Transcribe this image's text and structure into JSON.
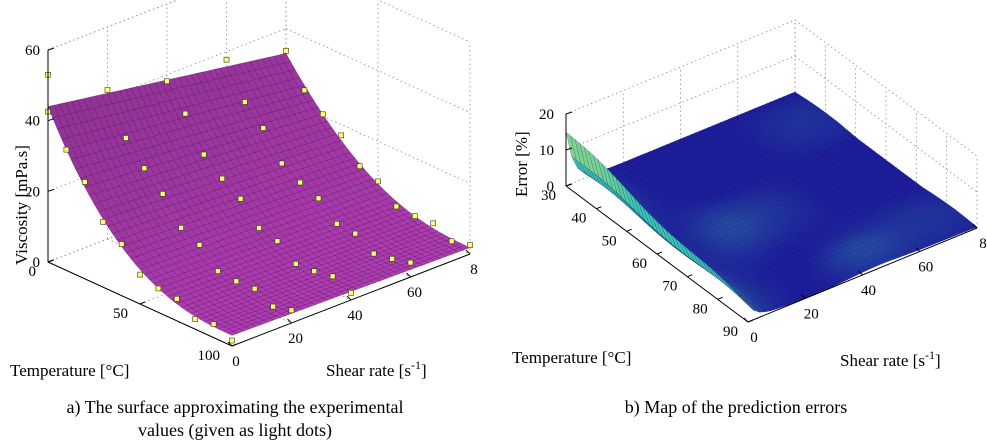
{
  "figure": {
    "caption_a_line1": "a) The surface approximating the experimental",
    "caption_a_line2": "values (given as light dots)",
    "caption_b": "b) Map of the prediction errors"
  },
  "chart_data": [
    {
      "type": "surface3d",
      "zlabel": "Viscosity [mPa.s]",
      "xlabel": "Shear rate [s⁻¹]",
      "ylabel": "Temperature [°C]",
      "xlabel_main": "Shear rate [s",
      "xlabel_sup": "-1",
      "xlabel_end": "]",
      "x_ticks": [
        "0",
        "20",
        "40",
        "60",
        "8"
      ],
      "y_ticks": [
        "0",
        "50",
        "100"
      ],
      "z_ticks": [
        "0",
        "20",
        "40",
        "60"
      ],
      "xlim": [
        0,
        80
      ],
      "ylim": [
        0,
        100
      ],
      "zlim": [
        0,
        60
      ],
      "surface_color": "#b03cb4",
      "mesh_color": "#3a0a3e",
      "point_color": "#ffff66",
      "surface_model": "viscosity decreases with temperature and shear rate; about 44 at (0,0), about 3 at high temperature",
      "grid": true
    },
    {
      "type": "surface3d",
      "zlabel": "Error [%]",
      "xlabel": "Shear rate [s⁻¹]",
      "ylabel": "Temperature [°C]",
      "xlabel_main": "Shear rate [s",
      "xlabel_sup": "-1",
      "xlabel_end": "]",
      "x_ticks": [
        "0",
        "20",
        "40",
        "60",
        "8"
      ],
      "y_ticks": [
        "30",
        "40",
        "50",
        "60",
        "70",
        "80",
        "90"
      ],
      "z_ticks": [
        "0",
        "10",
        "20"
      ],
      "xlim": [
        0,
        80
      ],
      "ylim": [
        30,
        90
      ],
      "zlim": [
        0,
        20
      ],
      "surface_color": "#1a1a9c",
      "high_error_color": "#39c8b4",
      "peak_error": 15,
      "grid": true
    }
  ]
}
